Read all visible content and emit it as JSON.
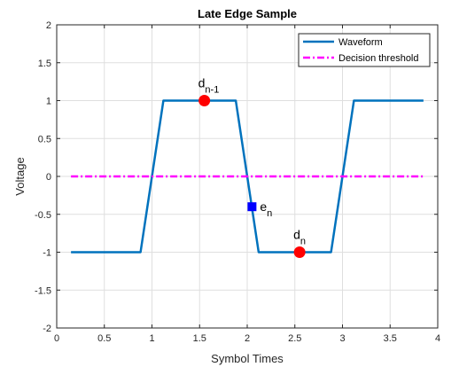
{
  "chart_data": {
    "type": "line",
    "title": "Late Edge Sample",
    "xlabel": "Symbol Times",
    "ylabel": "Voltage",
    "xlim": [
      0,
      4
    ],
    "ylim": [
      -2,
      2
    ],
    "xticks": [
      0,
      0.5,
      1,
      1.5,
      2,
      2.5,
      3,
      3.5,
      4
    ],
    "xtick_labels": [
      "0",
      "0.5",
      "1",
      "1.5",
      "2",
      "2.5",
      "3",
      "3.5",
      "4"
    ],
    "yticks": [
      -2,
      -1.5,
      -1,
      -0.5,
      0,
      0.5,
      1,
      1.5,
      2
    ],
    "ytick_labels": [
      "-2",
      "-1.5",
      "-1",
      "-0.5",
      "0",
      "0.5",
      "1",
      "1.5",
      "2"
    ],
    "grid": true,
    "legend_location": "top-right",
    "series": [
      {
        "name": "Waveform",
        "color": "#0072BD",
        "style": "solid",
        "x": [
          0.15,
          0.88,
          1.12,
          1.88,
          2.12,
          2.88,
          3.12,
          3.85
        ],
        "y": [
          -1,
          -1,
          1,
          1,
          -1,
          -1,
          1,
          1
        ]
      },
      {
        "name": "Decision threshold",
        "color": "#FF00FF",
        "style": "dash-dot",
        "x": [
          0.15,
          3.85
        ],
        "y": [
          0,
          0
        ]
      }
    ],
    "markers": [
      {
        "label_main": "d",
        "label_sub": "n-1",
        "shape": "circle",
        "color": "#FF0000",
        "x": 1.55,
        "y": 1
      },
      {
        "label_main": "e",
        "label_sub": "n",
        "shape": "square",
        "color": "#0000FF",
        "x": 2.05,
        "y": -0.4
      },
      {
        "label_main": "d",
        "label_sub": "n",
        "shape": "circle",
        "color": "#FF0000",
        "x": 2.55,
        "y": -1
      }
    ]
  }
}
